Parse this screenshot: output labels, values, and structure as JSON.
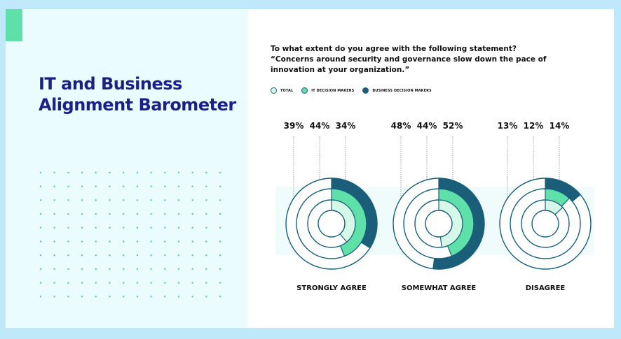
{
  "title_lines": [
    "IT and Business",
    "Alignment Barometer"
  ],
  "question_lines": [
    "To what extent do you agree with the following statement?",
    "“Concerns around security and governance slow down the pace of",
    "innovation at your organization.”"
  ],
  "colors": {
    "total": "#d6f8e9",
    "it": "#5fe0a9",
    "business": "#1b5e79",
    "ring_outline": "#16607a",
    "accent": "#5fe0a9",
    "title": "#1a1f8c",
    "dots": "#4fc1dc"
  },
  "chart_data": {
    "type": "radial-bar",
    "legend_position": "top-left",
    "series": [
      {
        "name": "TOTAL",
        "values": [
          39,
          48,
          13
        ]
      },
      {
        "name": "IT DECISION MAKERS",
        "values": [
          44,
          44,
          12
        ]
      },
      {
        "name": "BUSINESS DECISION MAKERS",
        "values": [
          34,
          52,
          14
        ]
      }
    ],
    "categories": [
      "STRONGLY AGREE",
      "SOMEWHAT AGREE",
      "DISAGREE"
    ],
    "value_labels": [
      [
        "39%",
        "44%",
        "34%"
      ],
      [
        "48%",
        "44%",
        "52%"
      ],
      [
        "13%",
        "12%",
        "14%"
      ]
    ]
  }
}
